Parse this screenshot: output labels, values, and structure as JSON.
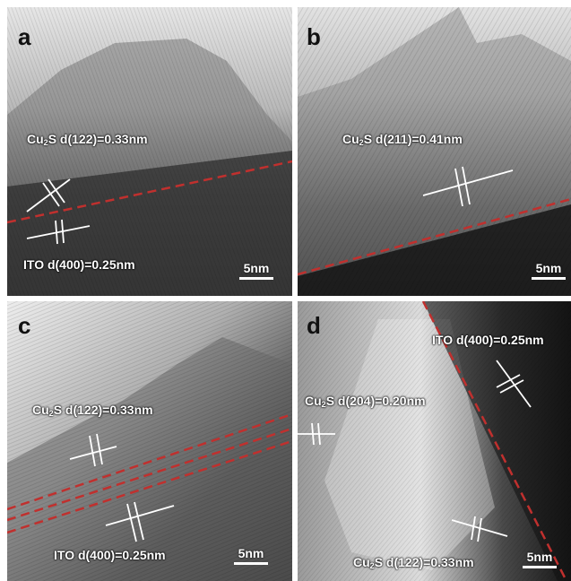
{
  "figure": {
    "panels": [
      {
        "label": "a",
        "annotation_top": {
          "prefix": "Cu",
          "sub": "2",
          "rest": "S d(122)=0.33nm"
        },
        "annotation_bottom": {
          "prefix": "ITO d(400)=0.25nm",
          "sub": "",
          "rest": ""
        },
        "scale": "5nm"
      },
      {
        "label": "b",
        "annotation_top": {
          "prefix": "Cu",
          "sub": "2",
          "rest": "S d(211)=0.41nm"
        },
        "scale": "5nm"
      },
      {
        "label": "c",
        "annotation_top": {
          "prefix": "Cu",
          "sub": "2",
          "rest": "S d(122)=0.33nm"
        },
        "annotation_bottom": {
          "prefix": "ITO d(400)=0.25nm",
          "sub": "",
          "rest": ""
        },
        "scale": "5nm"
      },
      {
        "label": "d",
        "annotation_top": {
          "prefix": "ITO d(400)=0.25nm",
          "sub": "",
          "rest": ""
        },
        "annotation_mid": {
          "prefix": "Cu",
          "sub": "2",
          "rest": "S d(204)=0.20nm"
        },
        "annotation_bottom": {
          "prefix": "Cu",
          "sub": "2",
          "rest": "S d(122)=0.33nm"
        },
        "scale": "5nm"
      }
    ],
    "colors": {
      "interface_line": "#c0302e",
      "annotation": "#ffffff",
      "label": "#111111"
    }
  }
}
